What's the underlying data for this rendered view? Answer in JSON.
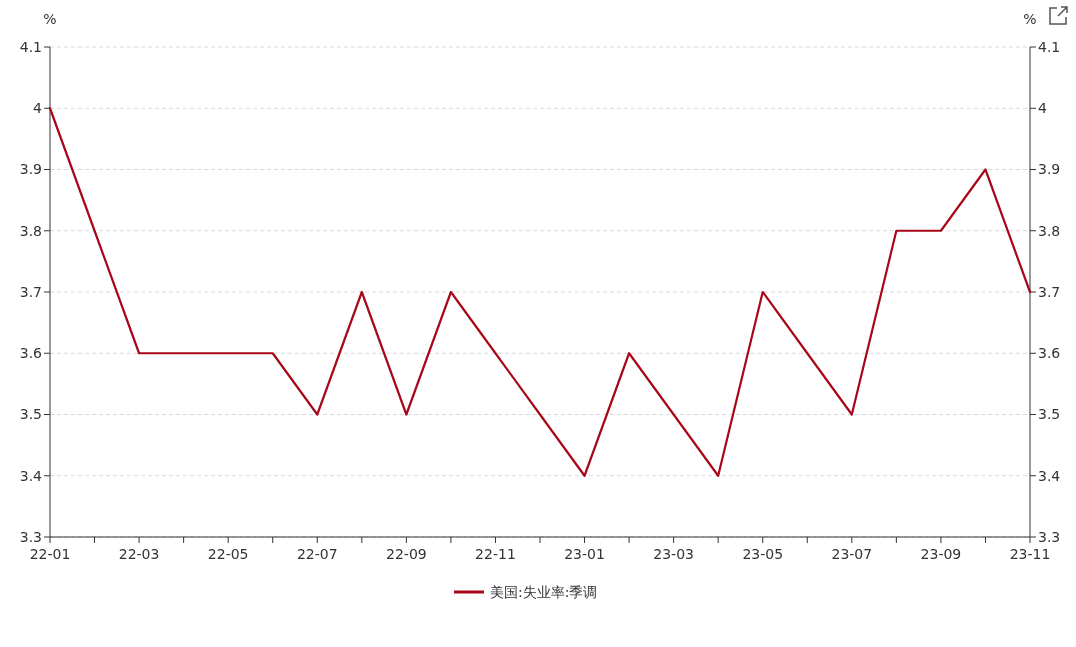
{
  "chart_data": {
    "type": "line",
    "ylabel": "%",
    "y2label": "%",
    "categories": [
      "22-01",
      null,
      "22-03",
      null,
      "22-05",
      null,
      "22-07",
      null,
      "22-09",
      null,
      "22-11",
      null,
      "23-01",
      null,
      "23-03",
      null,
      "23-05",
      null,
      "23-07",
      null,
      "23-09",
      null,
      "23-11"
    ],
    "series": [
      {
        "name": "美国:失业率:季调",
        "color": "#a8071a",
        "values": [
          4.0,
          3.8,
          3.6,
          3.6,
          3.6,
          3.6,
          3.5,
          3.7,
          3.5,
          3.7,
          3.6,
          3.5,
          3.4,
          3.6,
          3.5,
          3.4,
          3.7,
          3.6,
          3.5,
          3.8,
          3.8,
          3.9,
          3.7
        ]
      }
    ],
    "ylim": [
      3.3,
      4.1
    ],
    "yticks": [
      3.3,
      3.4,
      3.5,
      3.6,
      3.7,
      3.8,
      3.9,
      4,
      4.1
    ],
    "y2lim": [
      3.3,
      4.1
    ],
    "y2ticks": [
      3.3,
      3.4,
      3.5,
      3.6,
      3.7,
      3.8,
      3.9,
      4,
      4.1
    ],
    "grid": "y",
    "legend": "bottom",
    "marker": "none",
    "line_style": "solid"
  }
}
